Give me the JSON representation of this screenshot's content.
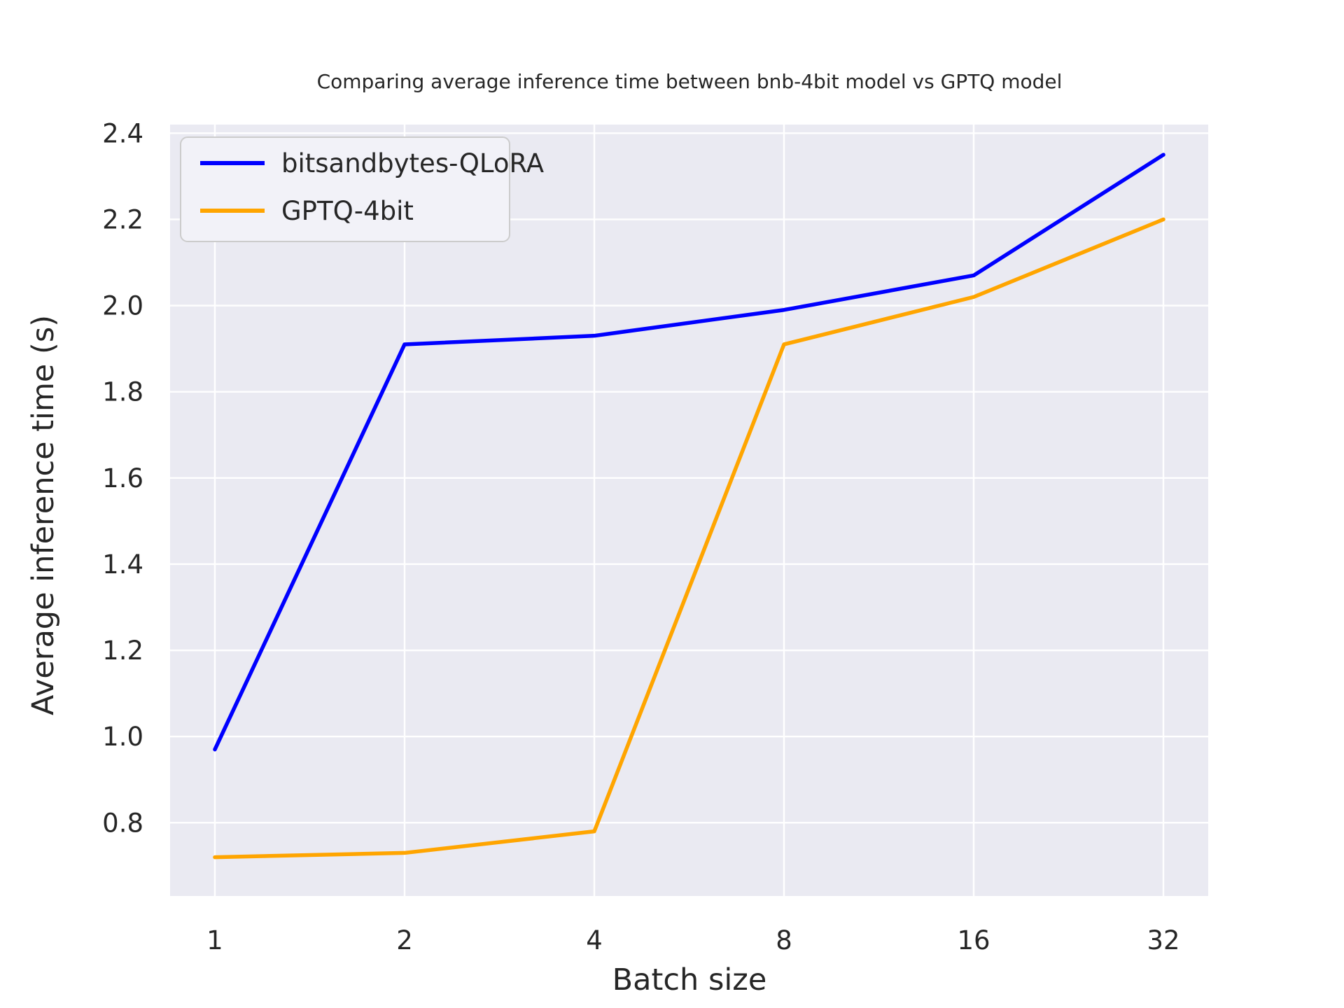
{
  "figure": {
    "title": "Comparing average inference time between bnb-4bit model vs GPTQ model",
    "xlabel": "Batch size",
    "ylabel": "Average inference time (s)"
  },
  "legend": {
    "position": "upper left",
    "entries": [
      {
        "label": "bitsandbytes-QLoRA",
        "color": "#0000ff"
      },
      {
        "label": "GPTQ-4bit",
        "color": "#ffa500"
      }
    ]
  },
  "chart_data": {
    "type": "line",
    "title": "Comparing average inference time between bnb-4bit model vs GPTQ model",
    "xlabel": "Batch size",
    "ylabel": "Average inference time (s)",
    "x_scale": "log2",
    "categories": [
      1,
      2,
      4,
      8,
      16,
      32
    ],
    "x_tick_labels": [
      "1",
      "2",
      "4",
      "8",
      "16",
      "32"
    ],
    "series": [
      {
        "name": "bitsandbytes-QLoRA",
        "color": "#0000ff",
        "values": [
          0.97,
          1.91,
          1.93,
          1.99,
          2.07,
          2.35
        ]
      },
      {
        "name": "GPTQ-4bit",
        "color": "#ffa500",
        "values": [
          0.72,
          0.73,
          0.78,
          1.91,
          2.02,
          2.2
        ]
      }
    ],
    "y_ticks": [
      0.8,
      1.0,
      1.2,
      1.4,
      1.6,
      1.8,
      2.0,
      2.2,
      2.4
    ],
    "y_tick_labels": [
      "0.8",
      "1.0",
      "1.2",
      "1.4",
      "1.6",
      "1.8",
      "2.0",
      "2.2",
      "2.4"
    ],
    "ylim": [
      0.63,
      2.42
    ],
    "grid": true,
    "legend_position": "upper left",
    "colors": {
      "plot_background": "#eaeaf2",
      "grid": "#ffffff",
      "text": "#262626",
      "legend_face": "#f2f2f8",
      "legend_edge": "#cccccc"
    }
  }
}
